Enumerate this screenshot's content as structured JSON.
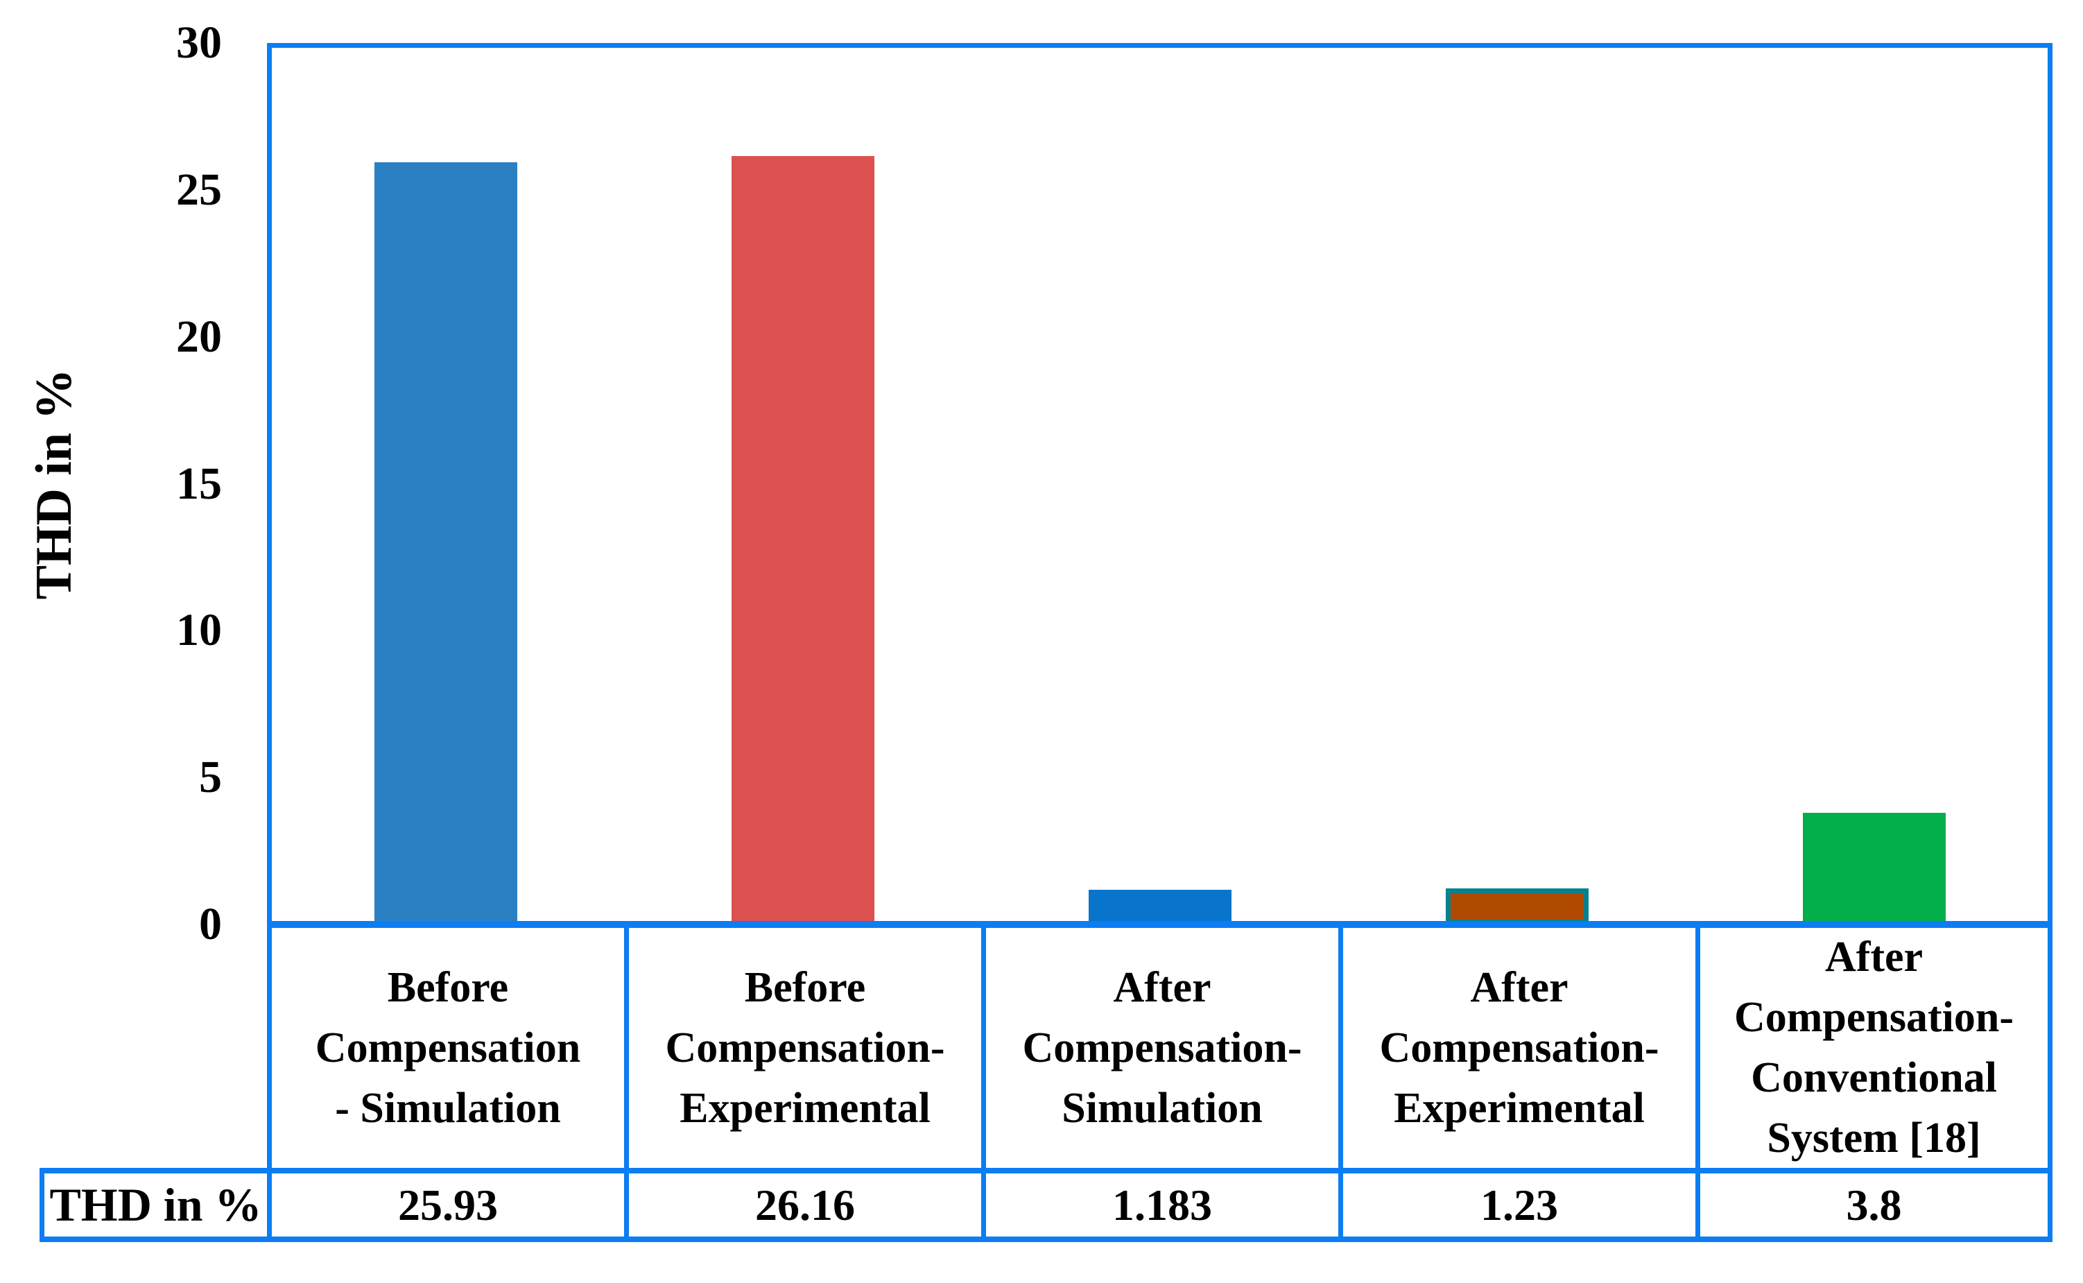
{
  "chart_data": {
    "type": "bar",
    "title": "",
    "xlabel": "",
    "ylabel": "THD in %",
    "ylim": [
      0,
      30
    ],
    "yticks": [
      0,
      5,
      10,
      15,
      20,
      25,
      30
    ],
    "grid": false,
    "legend": "none",
    "categories": [
      "Before\nCompensation\n- Simulation",
      "Before\nCompensation-\nExperimental",
      "After\nCompensation-\nSimulation",
      "After\nCompensation-\nExperimental",
      "After\nCompensation-\nConventional\nSystem [18]"
    ],
    "values": [
      25.93,
      26.16,
      1.183,
      1.23,
      3.8
    ],
    "bar_colors": [
      "#2B80C3",
      "#DC514F",
      "#0874CC",
      "#B04A02",
      "#02AF4A"
    ],
    "bar_outline_colors": [
      null,
      null,
      null,
      "#08818F",
      null
    ],
    "frame_color": "#0C7DF2",
    "data_table": {
      "row_header": "THD in %",
      "values": [
        "25.93",
        "26.16",
        "1.183",
        "1.23",
        "3.8"
      ]
    }
  }
}
